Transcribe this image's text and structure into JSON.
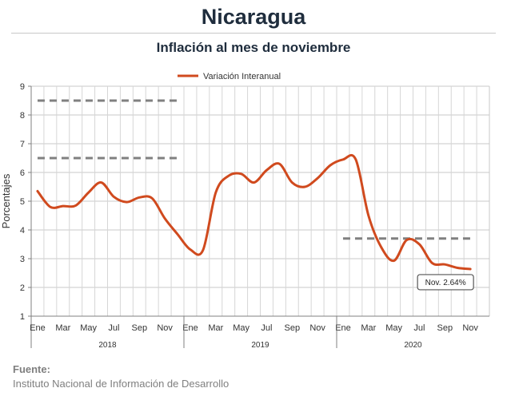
{
  "chart_data": {
    "type": "line",
    "title": "Nicaragua",
    "subtitle": "Inflación al mes de noviembre",
    "ylabel": "Porcentajes",
    "ylim": [
      1,
      9
    ],
    "yticks": [
      1,
      2,
      3,
      4,
      5,
      6,
      7,
      8,
      9
    ],
    "grid": true,
    "legend_position": "top",
    "x": [
      "2018-01",
      "2018-02",
      "2018-03",
      "2018-04",
      "2018-05",
      "2018-06",
      "2018-07",
      "2018-08",
      "2018-09",
      "2018-10",
      "2018-11",
      "2018-12",
      "2019-01",
      "2019-02",
      "2019-03",
      "2019-04",
      "2019-05",
      "2019-06",
      "2019-07",
      "2019-08",
      "2019-09",
      "2019-10",
      "2019-11",
      "2019-12",
      "2020-01",
      "2020-02",
      "2020-03",
      "2020-04",
      "2020-05",
      "2020-06",
      "2020-07",
      "2020-08",
      "2020-09",
      "2020-10",
      "2020-11"
    ],
    "month_tick_labels": [
      "Ene",
      "Mar",
      "May",
      "Jul",
      "Sep",
      "Nov",
      "Ene",
      "Mar",
      "May",
      "Jul",
      "Sep",
      "Nov",
      "Ene",
      "Mar",
      "May",
      "Jul",
      "Sep",
      "Nov"
    ],
    "year_labels": [
      "2018",
      "2019",
      "2020"
    ],
    "series": [
      {
        "name": "Variación Interanual",
        "color": "#d04a1e",
        "values": [
          5.35,
          4.8,
          4.83,
          4.85,
          5.3,
          5.65,
          5.15,
          4.97,
          5.13,
          5.1,
          4.4,
          3.85,
          3.32,
          3.3,
          5.3,
          5.88,
          5.95,
          5.65,
          6.08,
          6.3,
          5.65,
          5.5,
          5.8,
          6.25,
          6.45,
          6.45,
          4.5,
          3.4,
          2.93,
          3.65,
          3.5,
          2.85,
          2.8,
          2.68,
          2.64
        ]
      }
    ],
    "reference_lines": [
      {
        "y": 8.5,
        "from": "2018-01",
        "to": "2018-12",
        "color": "#808080"
      },
      {
        "y": 6.5,
        "from": "2018-01",
        "to": "2018-12",
        "color": "#808080"
      },
      {
        "y": 3.7,
        "from": "2020-01",
        "to": "2020-11",
        "color": "#808080"
      }
    ],
    "annotation": {
      "text": "Nov. 2.64%",
      "x": "2020-11",
      "y": 2.64
    }
  },
  "source": {
    "label": "Fuente:",
    "text": "Instituto Nacional de Información de  Desarrollo"
  }
}
